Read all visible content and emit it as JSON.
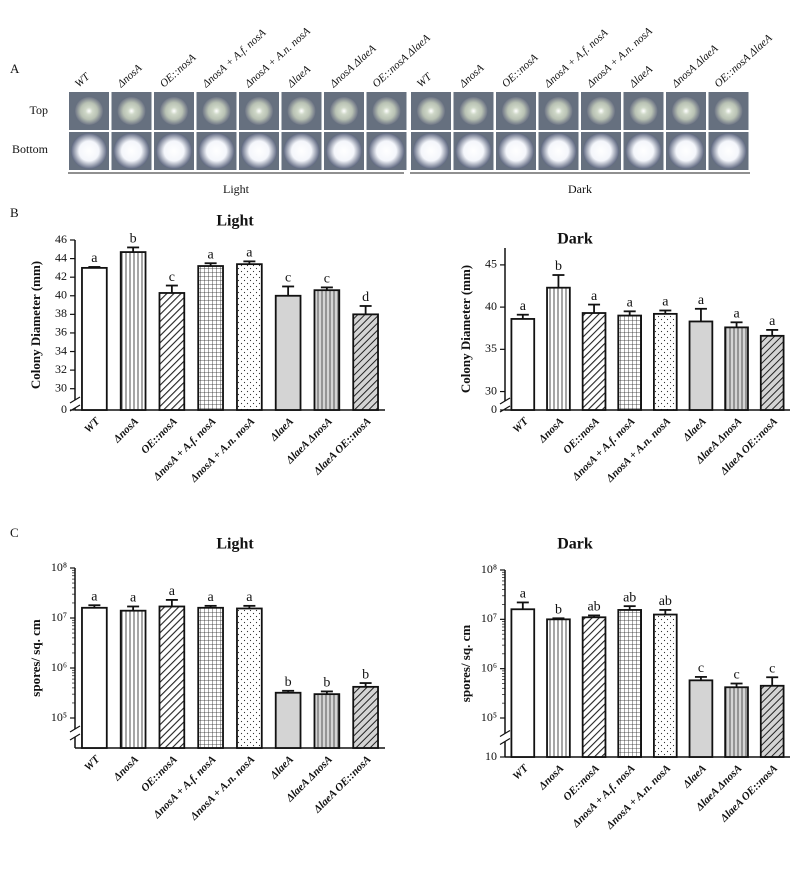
{
  "panel_labels": [
    "A",
    "B",
    "C"
  ],
  "panel_a": {
    "strains": [
      "WT",
      "ΔnosA",
      "OE::nosA",
      "ΔnosA + A.f. nosA",
      "ΔnosA + A.n. nosA",
      "ΔlaeA",
      "ΔnosA ΔlaeA",
      "OE::nosA ΔlaeA"
    ],
    "rows": [
      "Top",
      "Bottom"
    ],
    "conditions": [
      "Light",
      "Dark"
    ]
  },
  "chart_data": [
    {
      "type": "bar",
      "title": "Light",
      "y_label": "Colony Diameter (mm)",
      "categories": [
        "WT",
        "ΔnosA",
        "OE::nosA",
        "ΔnosA + A.f. nosA",
        "ΔnosA + A.n. nosA",
        "ΔlaeA",
        "ΔlaeA  ΔnosA",
        "ΔlaeA  OE::nosA"
      ],
      "values": [
        43,
        44.7,
        40.3,
        43.2,
        43.4,
        40.0,
        40.6,
        38.0
      ],
      "errors": [
        0.1,
        0.5,
        0.8,
        0.3,
        0.3,
        1.0,
        0.3,
        0.9
      ],
      "letters": [
        "a",
        "b",
        "c",
        "a",
        "a",
        "c",
        "c",
        "d"
      ],
      "bar_styles": [
        "open",
        "vertical",
        "diagonal",
        "grid",
        "dots",
        "gray",
        "gray-vertical",
        "gray-diagonal"
      ],
      "ylim": [
        29,
        46
      ],
      "yticks": [
        0,
        30,
        32,
        34,
        36,
        38,
        40,
        42,
        44,
        46
      ],
      "axis_break": true
    },
    {
      "type": "bar",
      "title": "Dark",
      "y_label": "Colony Diameter (mm)",
      "categories": [
        "WT",
        "ΔnosA",
        "OE::nosA",
        "ΔnosA + A.f. nosA",
        "ΔnosA + A.n. nosA",
        "ΔlaeA",
        "ΔlaeA  ΔnosA",
        "ΔlaeA  OE::nosA"
      ],
      "values": [
        38.6,
        42.3,
        39.3,
        39.0,
        39.2,
        38.3,
        37.6,
        36.6
      ],
      "errors": [
        0.5,
        1.5,
        1.0,
        0.5,
        0.4,
        1.5,
        0.6,
        0.7
      ],
      "letters": [
        "a",
        "b",
        "a",
        "a",
        "a",
        "a",
        "a",
        "a"
      ],
      "bar_styles": [
        "open",
        "vertical",
        "diagonal",
        "grid",
        "dots",
        "gray",
        "gray-vertical",
        "gray-diagonal"
      ],
      "ylim": [
        29,
        47
      ],
      "yticks": [
        0,
        30,
        35,
        40,
        45
      ],
      "axis_break": true
    },
    {
      "type": "bar",
      "title": "Light",
      "y_label": "spores/ sq. cm",
      "log_scale": true,
      "categories": [
        "WT",
        "ΔnosA",
        "OE::nosA",
        "ΔnosA + A.f. nosA",
        "ΔnosA + A.n. nosA",
        "ΔlaeA",
        "ΔlaeA  ΔnosA",
        "ΔlaeA  OE::nosA"
      ],
      "values": [
        16000000,
        14000000,
        17000000,
        16000000,
        15500000,
        320000,
        300000,
        420000
      ],
      "errors": [
        2000000,
        3000000,
        6000000,
        1500000,
        2000000,
        30000,
        40000,
        80000
      ],
      "letters": [
        "a",
        "a",
        "a",
        "a",
        "a",
        "b",
        "b",
        "b"
      ],
      "bar_styles": [
        "open",
        "vertical",
        "diagonal",
        "grid",
        "dots",
        "gray",
        "gray-vertical",
        "gray-diagonal"
      ],
      "ylim": [
        100000,
        100000000
      ],
      "yticks": [
        {
          "value": 100000,
          "label": "10⁵"
        },
        {
          "value": 1000000,
          "label": "10⁶"
        },
        {
          "value": 10000000,
          "label": "10⁷"
        },
        {
          "value": 100000000,
          "label": "10⁸"
        }
      ],
      "axis_break": true
    },
    {
      "type": "bar",
      "title": "Dark",
      "y_label": "spores/ sq. cm",
      "log_scale": true,
      "categories": [
        "WT",
        "ΔnosA",
        "OE::nosA",
        "ΔnosA + A.f. nosA",
        "ΔnosA + A.n. nosA",
        "ΔlaeA",
        "ΔlaeA  ΔnosA",
        "ΔlaeA  OE::nosA"
      ],
      "values": [
        16000000,
        10000000,
        11000000,
        15500000,
        12500000,
        580000,
        420000,
        450000
      ],
      "errors": [
        6000000,
        500000,
        1000000,
        3000000,
        3000000,
        100000,
        80000,
        220000
      ],
      "letters": [
        "a",
        "b",
        "ab",
        "ab",
        "ab",
        "c",
        "c",
        "c"
      ],
      "bar_styles": [
        "open",
        "vertical",
        "diagonal",
        "grid",
        "dots",
        "gray",
        "gray-vertical",
        "gray-diagonal"
      ],
      "ylim": [
        100000,
        100000000
      ],
      "yticks": [
        10,
        {
          "value": 100000,
          "label": "10⁵"
        },
        {
          "value": 1000000,
          "label": "10⁶"
        },
        {
          "value": 10000000,
          "label": "10⁷"
        },
        {
          "value": 100000000,
          "label": "10⁸"
        }
      ],
      "axis_break": true
    }
  ]
}
